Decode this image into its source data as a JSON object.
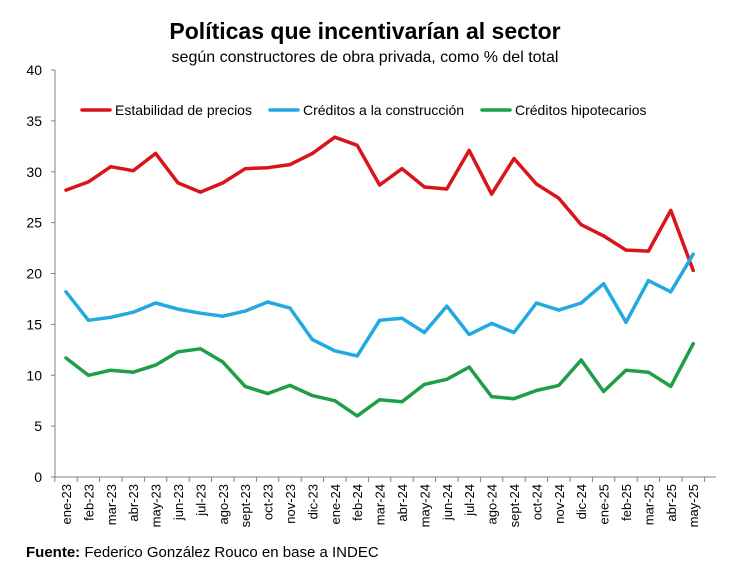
{
  "chart_data": {
    "type": "line",
    "title": "Políticas que incentivarían al sector",
    "subtitle": "según constructores de obra privada, como % del total",
    "xlabel": "",
    "ylabel": "",
    "ylim": [
      0,
      40
    ],
    "yticks": [
      "0",
      "5",
      "10",
      "15",
      "20",
      "25",
      "30",
      "35",
      "40"
    ],
    "grid": false,
    "legend_position": "top",
    "categories": [
      "ene-23",
      "feb-23",
      "mar-23",
      "abr-23",
      "may-23",
      "jun-23",
      "jul-23",
      "ago-23",
      "sept-23",
      "oct-23",
      "nov-23",
      "dic-23",
      "ene-24",
      "feb-24",
      "mar-24",
      "abr-24",
      "may-24",
      "jun-24",
      "jul-24",
      "ago-24",
      "sept-24",
      "oct-24",
      "nov-24",
      "dic-24",
      "ene-25",
      "feb-25",
      "mar-25",
      "abr-25",
      "may-25"
    ],
    "series": [
      {
        "name": "Estabilidad de precios",
        "color": "#d9141b",
        "values": [
          28.2,
          29.0,
          30.5,
          30.1,
          31.8,
          28.9,
          28.0,
          28.9,
          30.3,
          30.4,
          30.7,
          31.8,
          33.4,
          32.6,
          28.7,
          30.3,
          28.5,
          28.3,
          32.1,
          27.8,
          31.3,
          28.8,
          27.4,
          24.8,
          23.7,
          22.3,
          22.2,
          26.2,
          20.3
        ]
      },
      {
        "name": "Créditos a la construcción",
        "color": "#23a9e1",
        "values": [
          18.2,
          15.4,
          15.7,
          16.2,
          17.1,
          16.5,
          16.1,
          15.8,
          16.3,
          17.2,
          16.6,
          13.5,
          12.4,
          11.9,
          15.4,
          15.6,
          14.2,
          16.8,
          14.0,
          15.1,
          14.2,
          17.1,
          16.4,
          17.1,
          19.0,
          15.2,
          19.3,
          18.2,
          21.9
        ]
      },
      {
        "name": "Créditos hipotecarios",
        "color": "#1f9e48",
        "values": [
          11.7,
          10.0,
          10.5,
          10.3,
          11.0,
          12.3,
          12.6,
          11.3,
          8.9,
          8.2,
          9.0,
          8.0,
          7.5,
          6.0,
          7.6,
          7.4,
          9.1,
          9.6,
          10.8,
          7.9,
          7.7,
          8.5,
          9.0,
          11.5,
          8.4,
          10.5,
          10.3,
          8.9,
          13.1
        ]
      }
    ]
  },
  "source": {
    "label": "Fuente:",
    "text": "Federico González Rouco en base a INDEC"
  }
}
